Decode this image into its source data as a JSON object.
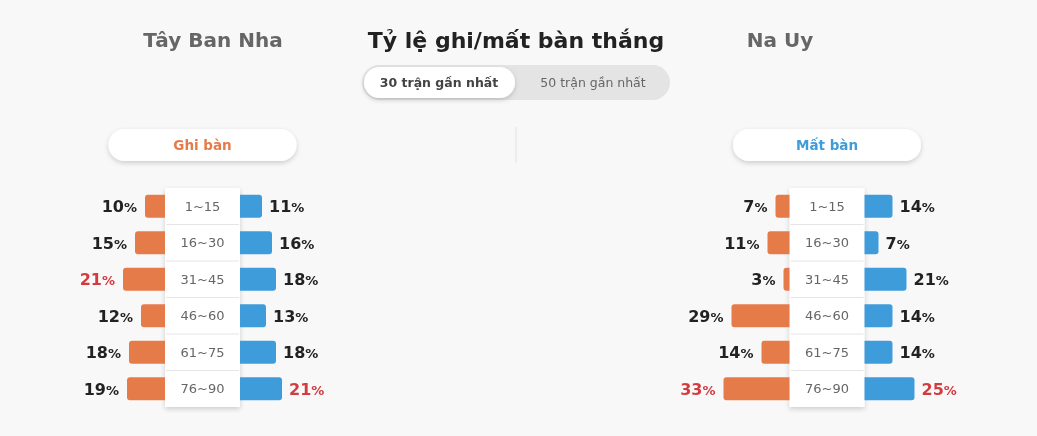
{
  "chart_data": [
    {
      "type": "other",
      "title": "Tỷ lệ ghi/mất bàn thắng",
      "annotations": [
        "30 trận gần nhất",
        "50 trận gần nhất"
      ]
    },
    {
      "type": "bar",
      "orientation": "horizontal",
      "title": "Tây Ban Nha",
      "categories": [
        "1~15",
        "16~30",
        "31~45",
        "46~60",
        "61~75",
        "76~90"
      ],
      "series": [
        {
          "name": "Ghi bàn",
          "color": "#e57b49",
          "values": [
            10,
            15,
            21,
            12,
            18,
            19
          ],
          "value_labels": [
            "10%",
            "15%",
            "21%",
            "12%",
            "18%",
            "19%"
          ]
        }
      ]
    },
    {
      "type": "bar",
      "orientation": "horizontal",
      "categories": [
        null,
        null,
        null,
        null,
        null,
        null
      ],
      "series": [
        {
          "color": "#3e9cdb",
          "values": [
            11,
            16,
            18,
            13,
            18,
            21
          ],
          "value_labels": [
            "11%",
            "16%",
            "18%",
            "13%",
            "18%",
            "21%"
          ]
        }
      ]
    },
    {
      "type": "bar",
      "orientation": "horizontal",
      "title": "Na Uy",
      "categories": [
        "1~15",
        "16~30",
        "31~45",
        "46~60",
        "61~75",
        "76~90"
      ],
      "series": [
        {
          "color": "#e57b49",
          "values": [
            7,
            11,
            3,
            29,
            14,
            33
          ],
          "value_labels": [
            "7%",
            "11%",
            "3%",
            "29%",
            "14%",
            "33%"
          ]
        }
      ]
    },
    {
      "type": "bar",
      "orientation": "horizontal",
      "categories": [
        null,
        null,
        null,
        null,
        null,
        null
      ],
      "series": [
        {
          "name": "Mất bàn",
          "color": "#3e9cdb",
          "values": [
            14,
            7,
            21,
            14,
            14,
            25
          ],
          "value_labels": [
            "14%",
            "7%",
            "21%",
            "14%",
            "14%",
            "25%"
          ]
        }
      ]
    }
  ]
}
